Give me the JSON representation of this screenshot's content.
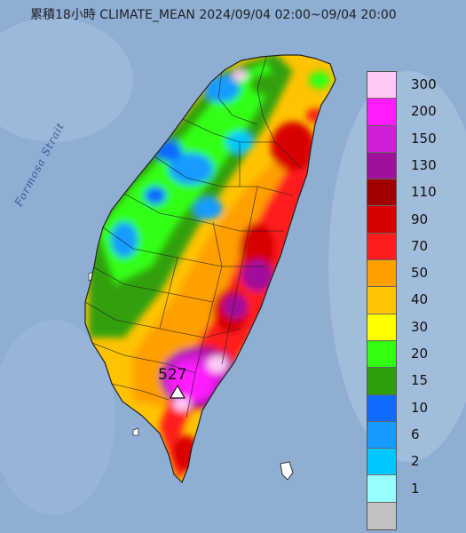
{
  "title": "累積18小時 CLIMATE_MEAN 2024/09/04 02:00~09/04 20:00",
  "sea_label": "Formosa Strait",
  "peak": {
    "value": "527",
    "marker": "triangle-icon"
  },
  "legend": {
    "levels": [
      {
        "label": "300",
        "color": "#ffc8f5"
      },
      {
        "label": "200",
        "color": "#ff1cff"
      },
      {
        "label": "150",
        "color": "#d21ed6"
      },
      {
        "label": "130",
        "color": "#a0119a"
      },
      {
        "label": "110",
        "color": "#a10000"
      },
      {
        "label": "90",
        "color": "#d90000"
      },
      {
        "label": "70",
        "color": "#ff1c1c"
      },
      {
        "label": "50",
        "color": "#ff9f00"
      },
      {
        "label": "40",
        "color": "#ffc300"
      },
      {
        "label": "30",
        "color": "#ffff00"
      },
      {
        "label": "20",
        "color": "#32ff12"
      },
      {
        "label": "15",
        "color": "#30a00a"
      },
      {
        "label": "10",
        "color": "#0f6bff"
      },
      {
        "label": "6",
        "color": "#169bff"
      },
      {
        "label": "2",
        "color": "#00c7ff"
      },
      {
        "label": "1",
        "color": "#97ffff"
      },
      {
        "label": "",
        "color": "#c1c1c1"
      }
    ]
  }
}
